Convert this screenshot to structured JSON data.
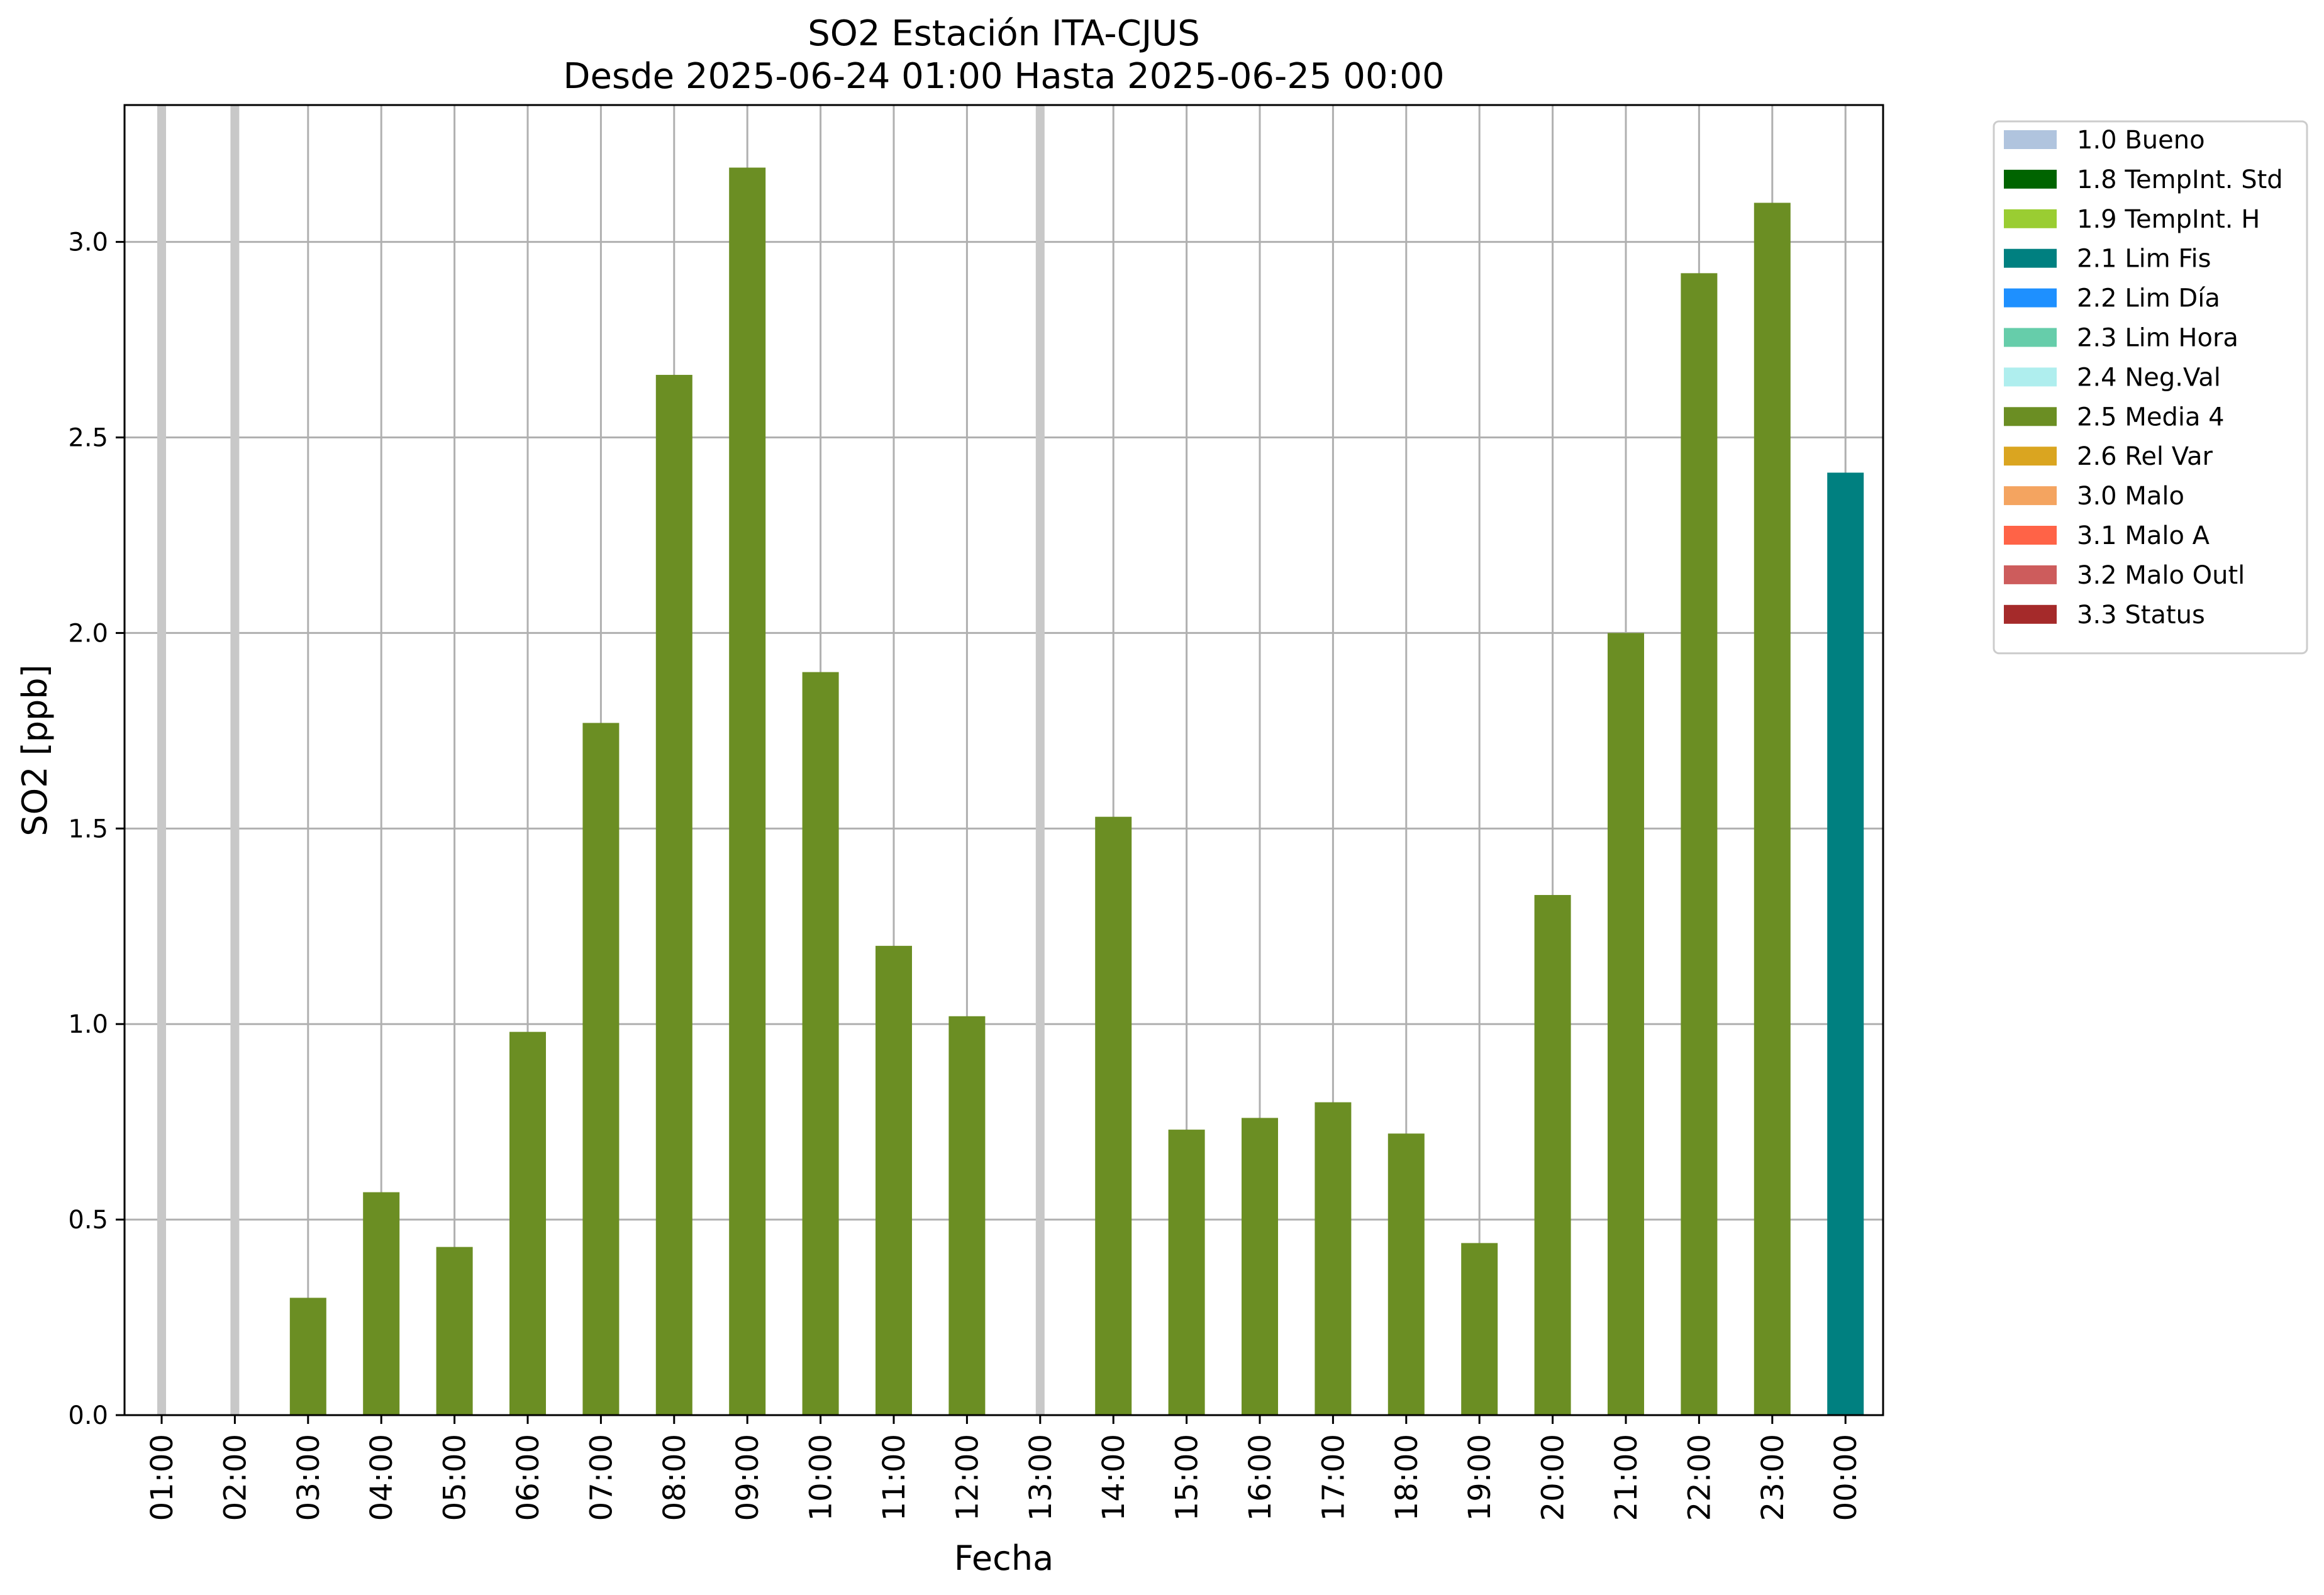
{
  "chart_data": {
    "type": "bar",
    "title": "SO2 Estación ITA-CJUS",
    "subtitle": "Desde 2025-06-24 01:00 Hasta 2025-06-25 00:00",
    "xlabel": "Fecha",
    "ylabel": "SO2 [ppb]",
    "ylim": [
      0,
      3.35
    ],
    "yticks": [
      0.0,
      0.5,
      1.0,
      1.5,
      2.0,
      2.5,
      3.0
    ],
    "ytick_labels": [
      "0.0",
      "0.5",
      "1.0",
      "1.5",
      "2.0",
      "2.5",
      "3.0"
    ],
    "grid": true,
    "legend_position": "outside-right",
    "categories": [
      "01:00",
      "02:00",
      "03:00",
      "04:00",
      "05:00",
      "06:00",
      "07:00",
      "08:00",
      "09:00",
      "10:00",
      "11:00",
      "12:00",
      "13:00",
      "14:00",
      "15:00",
      "16:00",
      "17:00",
      "18:00",
      "19:00",
      "20:00",
      "21:00",
      "22:00",
      "23:00",
      "00:00"
    ],
    "values": [
      null,
      null,
      0.3,
      0.57,
      0.43,
      0.98,
      1.77,
      2.66,
      3.19,
      1.9,
      1.2,
      1.02,
      null,
      1.53,
      0.73,
      0.76,
      0.8,
      0.72,
      0.44,
      1.33,
      2.0,
      2.92,
      3.1,
      2.41
    ],
    "flags": [
      "",
      "",
      "2.5 Media 4",
      "2.5 Media 4",
      "2.5 Media 4",
      "2.5 Media 4",
      "2.5 Media 4",
      "2.5 Media 4",
      "2.5 Media 4",
      "2.5 Media 4",
      "2.5 Media 4",
      "2.5 Media 4",
      "",
      "2.5 Media 4",
      "2.5 Media 4",
      "2.5 Media 4",
      "2.5 Media 4",
      "2.5 Media 4",
      "2.5 Media 4",
      "2.5 Media 4",
      "2.5 Media 4",
      "2.5 Media 4",
      "2.5 Media 4",
      "2.1 Lim Fis"
    ],
    "missing_markers": [
      "01:00",
      "02:00",
      "13:00"
    ],
    "legend": [
      {
        "label": "1.0 Bueno",
        "color": "#b0c4de"
      },
      {
        "label": "1.8 TempInt. Std",
        "color": "#006400"
      },
      {
        "label": "1.9 TempInt. H",
        "color": "#9acd32"
      },
      {
        "label": "2.1 Lim Fis",
        "color": "#008080"
      },
      {
        "label": "2.2 Lim Día",
        "color": "#1e90ff"
      },
      {
        "label": "2.3 Lim Hora",
        "color": "#66cdaa"
      },
      {
        "label": "2.4 Neg.Val",
        "color": "#afeeee"
      },
      {
        "label": "2.5 Media 4",
        "color": "#6b8e23"
      },
      {
        "label": "2.6 Rel Var",
        "color": "#daa520"
      },
      {
        "label": "3.0 Malo",
        "color": "#f4a460"
      },
      {
        "label": "3.1 Malo A",
        "color": "#ff6347"
      },
      {
        "label": "3.2 Malo Outl",
        "color": "#cd5c5c"
      },
      {
        "label": "3.3 Status",
        "color": "#a52a2a"
      }
    ]
  }
}
